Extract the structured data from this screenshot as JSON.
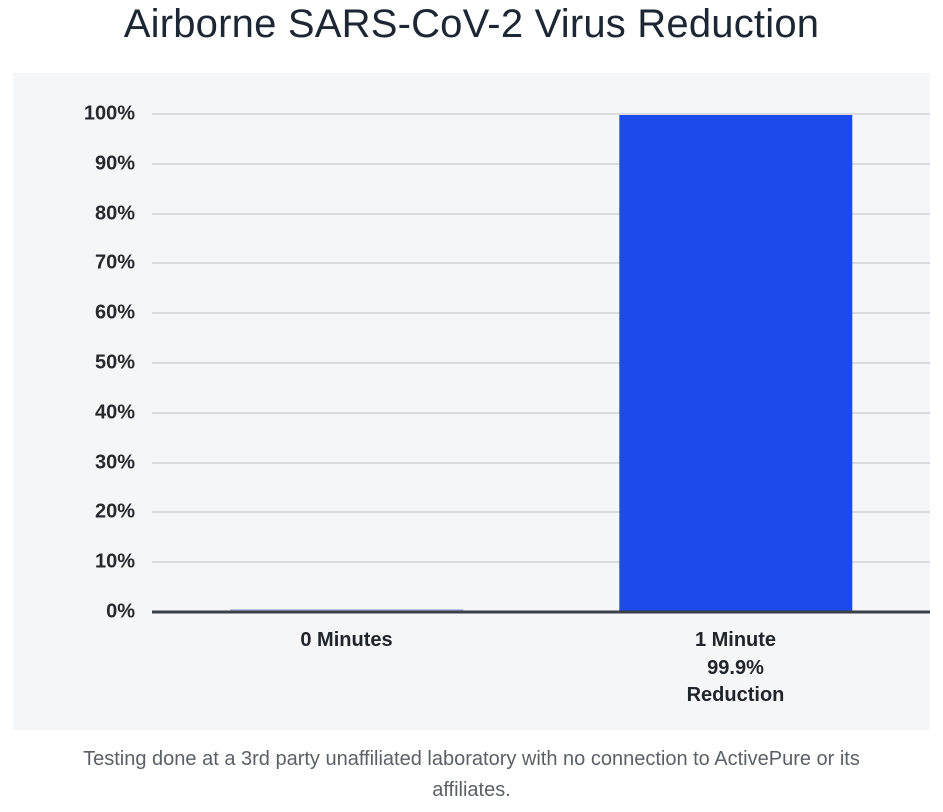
{
  "title": "Airborne SARS-CoV-2 Virus Reduction",
  "footer": "Testing done at a 3rd party unaffiliated laboratory with no connection to ActivePure or its affiliates.",
  "chart_data": {
    "type": "bar",
    "title": "Airborne SARS-CoV-2 Virus Reduction",
    "categories": [
      "0 Minutes",
      "1 Minute\n99.9%\nReduction"
    ],
    "values": [
      0,
      99.9
    ],
    "bar_colors": [
      "#b6bfdd",
      "#1d4aea"
    ],
    "xlabel": "",
    "ylabel": "",
    "ylim": [
      0,
      100
    ],
    "ytick_step": 10,
    "ytick_labels": [
      "0%",
      "10%",
      "20%",
      "30%",
      "40%",
      "50%",
      "60%",
      "70%",
      "80%",
      "90%",
      "100%"
    ],
    "grid": true,
    "legend": "none",
    "annotation": "99.9% Reduction at 1 Minute",
    "colors": {
      "panel_bg": "#f5f6f8",
      "gridline": "#d9dbde",
      "axis_line": "#3b3f47",
      "title_text": "#1d2733",
      "tick_text": "#26292e",
      "footer_text": "#5b5f66"
    }
  }
}
